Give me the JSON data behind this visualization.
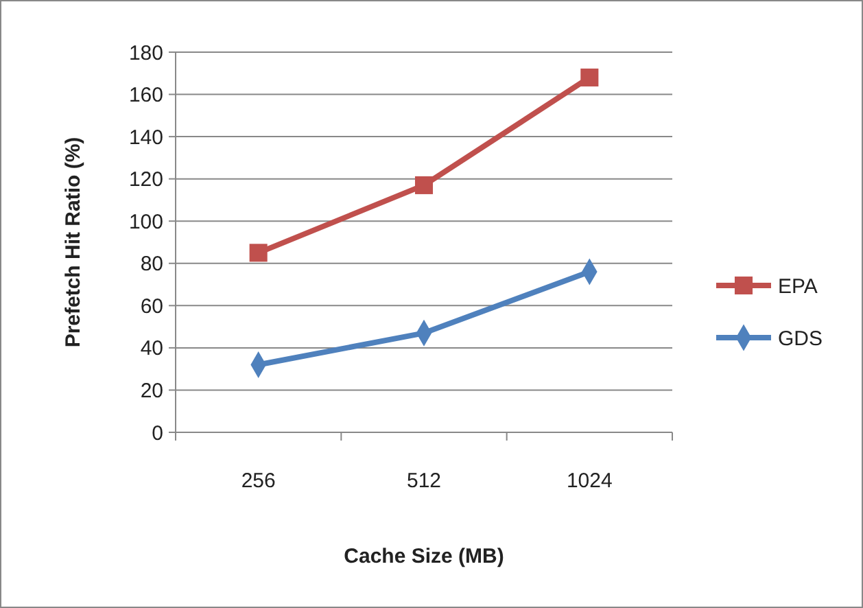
{
  "chart_data": {
    "type": "line",
    "xlabel": "Cache Size (MB)",
    "ylabel": "Prefetch Hit Ratio (%)",
    "categories": [
      "256",
      "512",
      "1024"
    ],
    "ylim": [
      0,
      180
    ],
    "yticks": [
      0,
      20,
      40,
      60,
      80,
      100,
      120,
      140,
      160,
      180
    ],
    "grid": "y",
    "legend": "right",
    "series": [
      {
        "name": "EPA",
        "color": "#c0504d",
        "marker": "square",
        "values": [
          85,
          117,
          168
        ]
      },
      {
        "name": "GDS",
        "color": "#4f81bd",
        "marker": "diamond",
        "values": [
          32,
          47,
          76
        ]
      }
    ]
  }
}
